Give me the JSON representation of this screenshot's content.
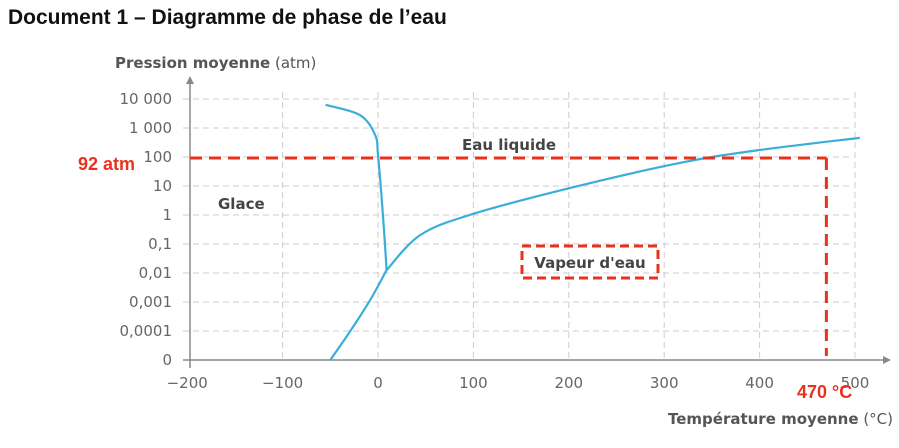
{
  "title": "Document 1 – Diagramme de phase de l’eau",
  "chart_data": {
    "type": "line",
    "ylabel_bold": "Pression moyenne",
    "ylabel_unit": "(atm)",
    "xlabel_bold": "Température moyenne",
    "xlabel_unit": "(°C)",
    "y_scale": "log",
    "xlim": [
      -200,
      500
    ],
    "x_ticks": [
      "−200",
      "−100",
      "0",
      "100",
      "200",
      "300",
      "400",
      "500"
    ],
    "x_tick_values": [
      -200,
      -100,
      0,
      100,
      200,
      300,
      400,
      500
    ],
    "y_ticks": [
      "10 000",
      "1 000",
      "100",
      "10",
      "1",
      "0,1",
      "0,01",
      "0,001",
      "0,0001",
      "0"
    ],
    "y_tick_values": [
      10000,
      1000,
      100,
      10,
      1,
      0.1,
      0.01,
      0.001,
      0.0001,
      1e-05
    ],
    "grid": true,
    "line_color": "#3aaed8",
    "series": [
      {
        "points": [
          [
            -50,
            1e-05
          ],
          [
            -29,
            0.0001
          ],
          [
            -8,
            0.0012
          ],
          [
            9,
            0.0126
          ]
        ]
      },
      {
        "points": [
          [
            -55,
            6300
          ],
          [
            -19,
            2800
          ],
          [
            -3,
            575
          ],
          [
            0,
            117
          ],
          [
            4,
            3.3
          ],
          [
            7,
            0.14
          ],
          [
            9,
            0.0126
          ]
        ]
      },
      {
        "points": [
          [
            9,
            0.0126
          ],
          [
            44,
            0.2
          ],
          [
            96,
            1
          ],
          [
            201,
            8.5
          ],
          [
            317,
            63
          ],
          [
            400,
            174
          ],
          [
            505,
            457
          ]
        ]
      }
    ],
    "regions": [
      "Eau liquide",
      "Glace",
      "Vapeur d'eau"
    ],
    "annotations": {
      "pressure_label": "92 atm",
      "pressure_value": 92,
      "temperature_label": "470 °C",
      "temperature_value": 470,
      "color": "#e8321e"
    }
  }
}
